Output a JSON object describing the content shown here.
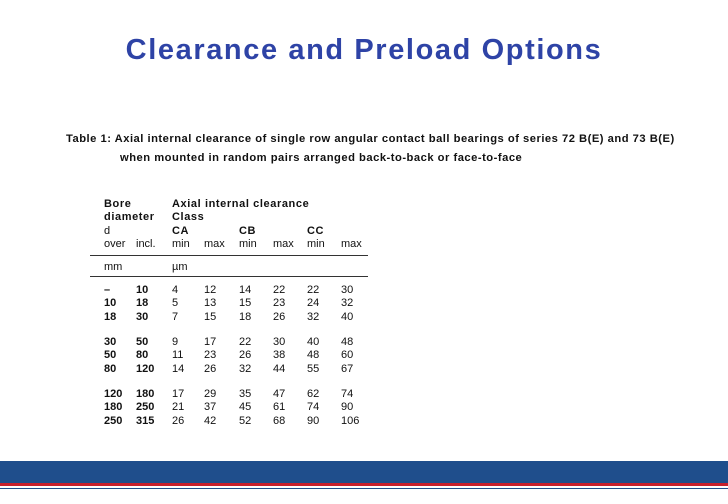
{
  "title": "Clearance and Preload Options",
  "caption": {
    "line1": "Table 1: Axial internal clearance of single row angular contact ball bearings of series 72 B(E) and 73 B(E)",
    "line2": "when mounted in random pairs arranged back-to-back or face-to-face"
  },
  "table": {
    "header": {
      "bore_line1": "Bore",
      "bore_line2": "diameter",
      "bore_line3": "d",
      "over": "over",
      "incl": "incl.",
      "group_line1": "Axial internal clearance",
      "group_line2": "Class",
      "classes": [
        "CA",
        "CB",
        "CC"
      ],
      "minmax": [
        "min",
        "max",
        "min",
        "max",
        "min",
        "max"
      ]
    },
    "units": {
      "bore": "mm",
      "clearance": "µm"
    },
    "rows": [
      [
        "–",
        "10",
        "4",
        "12",
        "14",
        "22",
        "22",
        "30"
      ],
      [
        "10",
        "18",
        "5",
        "13",
        "15",
        "23",
        "24",
        "32"
      ],
      [
        "18",
        "30",
        "7",
        "15",
        "18",
        "26",
        "32",
        "40"
      ],
      [
        "30",
        "50",
        "9",
        "17",
        "22",
        "30",
        "40",
        "48"
      ],
      [
        "50",
        "80",
        "11",
        "23",
        "26",
        "38",
        "48",
        "60"
      ],
      [
        "80",
        "120",
        "14",
        "26",
        "32",
        "44",
        "55",
        "67"
      ],
      [
        "120",
        "180",
        "17",
        "29",
        "35",
        "47",
        "62",
        "74"
      ],
      [
        "180",
        "250",
        "21",
        "37",
        "45",
        "61",
        "74",
        "90"
      ],
      [
        "250",
        "315",
        "26",
        "42",
        "52",
        "68",
        "90",
        "106"
      ]
    ]
  }
}
